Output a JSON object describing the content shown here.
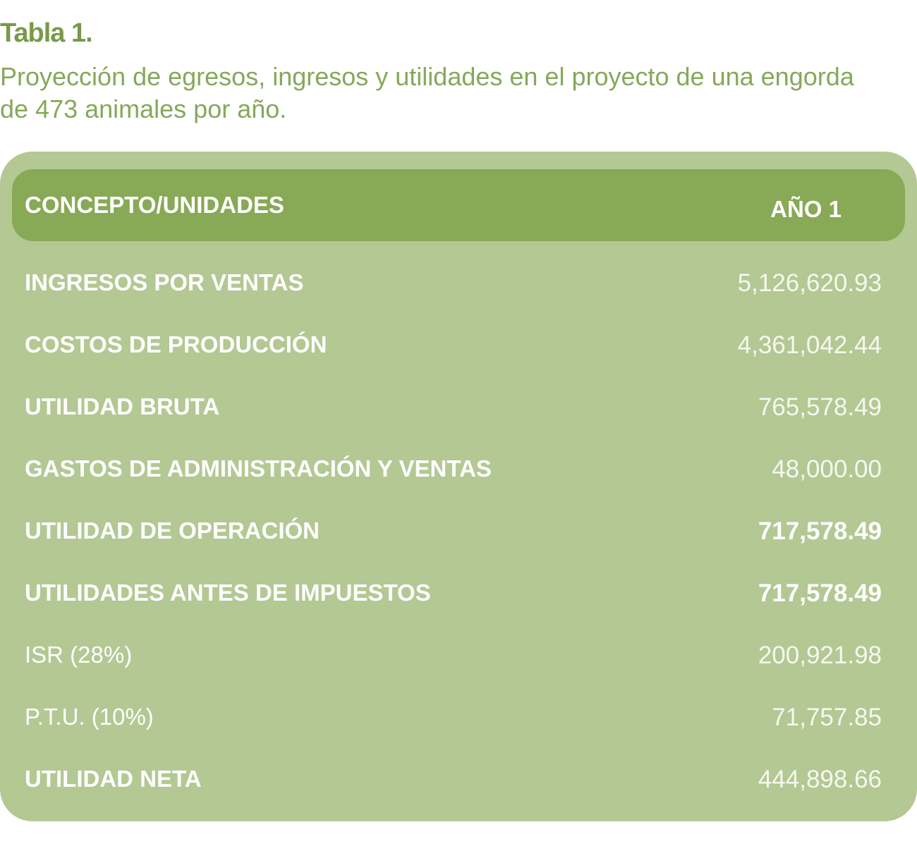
{
  "header": {
    "title": "Tabla 1.",
    "caption": "Proyección de egresos, ingresos y utilidades en el proyecto de una engorda de 473 animales por año."
  },
  "table": {
    "columns": [
      "CONCEPTO/UNIDADES",
      "AÑO 1"
    ],
    "rows": [
      [
        "INGRESOS POR VENTAS",
        "5,126,620.93"
      ],
      [
        "COSTOS DE PRODUCCIÓN",
        "4,361,042.44"
      ],
      [
        "UTILIDAD BRUTA",
        "765,578.49"
      ],
      [
        "GASTOS DE ADMINISTRACIÓN Y VENTAS",
        "48,000.00"
      ],
      [
        "UTILIDAD DE OPERACIÓN",
        "717,578.49"
      ],
      [
        "UTILIDADES ANTES DE IMPUESTOS",
        "717,578.49"
      ],
      [
        "ISR (28%)",
        "200,921.98"
      ],
      [
        "P.T.U. (10%)",
        "71,757.85"
      ],
      [
        "UTILIDAD NETA",
        "444,898.66"
      ]
    ]
  }
}
